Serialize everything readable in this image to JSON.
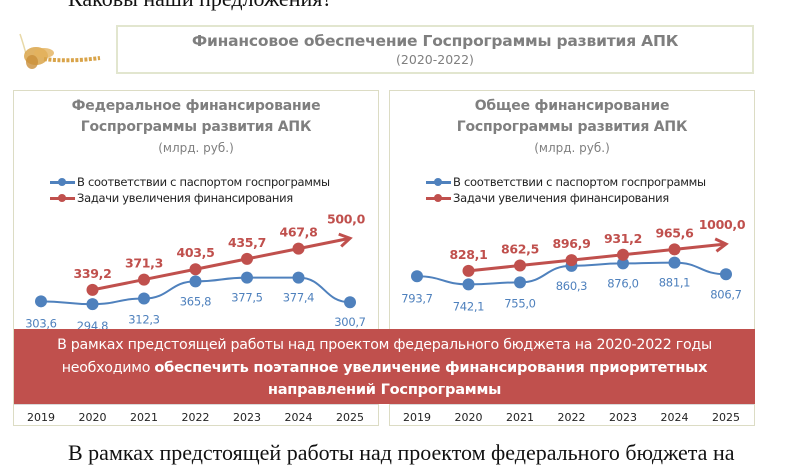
{
  "document": {
    "top_text": "Каковы наши предложения?",
    "bottom_text": "В рамках предстоящей работы над проектом федерального бюджета на"
  },
  "header": {
    "title": "Финансовое обеспечение Госпрограммы развития АПК",
    "subtitle": "(2020-2022)"
  },
  "colors": {
    "blue_series": "#4f81bd",
    "red_series": "#c0504d",
    "banner_bg": "#c0504d",
    "title_gray": "#7f7f7f"
  },
  "banner": {
    "line1": "В рамках предстоящей работы над проектом федерального бюджета на 2020-2022 годы",
    "line2_prefix": "необходимо ",
    "line2_bold": "обеспечить поэтапное увеличение финансирования приоритетных",
    "line3_bold": "направлений Госпрограммы"
  },
  "chart_data": [
    {
      "type": "line",
      "title": "Федеральное финансирование Госпрограммы развития АПК",
      "title_line1": "Федеральное финансирование",
      "title_line2": "Госпрограммы развития АПК",
      "units": "(млрд. руб.)",
      "categories": [
        "2019",
        "2020",
        "2021",
        "2022",
        "2023",
        "2024",
        "2025"
      ],
      "legend_position": "top-left",
      "series": [
        {
          "name": "В соответствии с паспортом госпрограммы",
          "color": "#4f81bd",
          "values": [
            303.6,
            294.8,
            312.3,
            365.8,
            377.5,
            377.4,
            300.7
          ],
          "labels": [
            "303,6",
            "294,8",
            "312,3",
            "365,8",
            "377,5",
            "377,4",
            "300,7"
          ]
        },
        {
          "name": "Задачи увеличения финансирования",
          "color": "#c0504d",
          "values": [
            null,
            339.2,
            371.3,
            403.5,
            435.7,
            467.8,
            500.0
          ],
          "labels": [
            null,
            "339,2",
            "371,3",
            "403,5",
            "435,7",
            "467,8",
            "500,0"
          ],
          "arrow_end": true
        }
      ],
      "ylim": [
        180,
        560
      ]
    },
    {
      "type": "line",
      "title": "Общее финансирование Госпрограммы развития АПК",
      "title_line1": "Общее финансирование",
      "title_line2": "Госпрограммы развития АПК",
      "units": "(млрд. руб.)",
      "categories": [
        "2019",
        "2020",
        "2021",
        "2022",
        "2023",
        "2024",
        "2025"
      ],
      "legend_position": "top-left",
      "series": [
        {
          "name": "В соответствии с паспортом госпрограммы",
          "color": "#4f81bd",
          "values": [
            793.7,
            742.1,
            755.0,
            860.3,
            876.0,
            881.1,
            806.7
          ],
          "labels": [
            "793,7",
            "742,1",
            "755,0",
            "860,3",
            "876,0",
            "881,1",
            "806,7"
          ]
        },
        {
          "name": "Задачи увеличения финансирования",
          "color": "#c0504d",
          "values": [
            null,
            828.1,
            862.5,
            896.9,
            931.2,
            965.6,
            1000.0
          ],
          "labels": [
            null,
            "828,1",
            "862,5",
            "896,9",
            "931,2",
            "965,6",
            "1000,0"
          ],
          "arrow_end": true
        }
      ],
      "ylim": [
        380,
        1160
      ]
    }
  ]
}
